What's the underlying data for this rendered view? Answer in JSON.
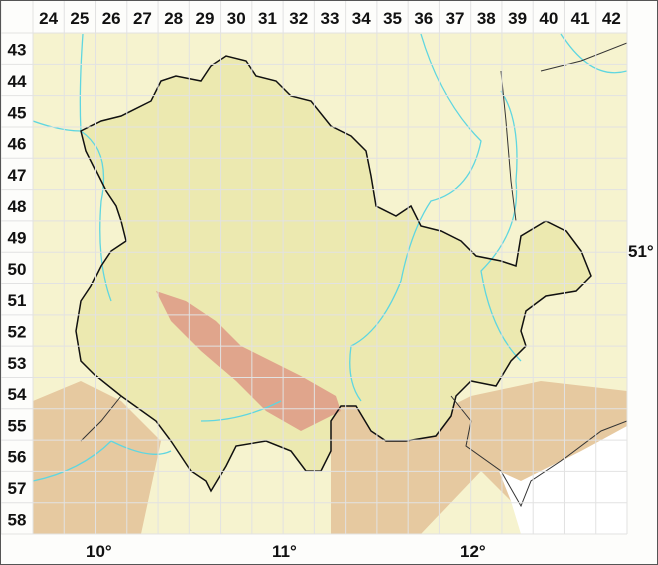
{
  "grid": {
    "columns": [
      "24",
      "25",
      "26",
      "27",
      "28",
      "29",
      "30",
      "31",
      "32",
      "33",
      "34",
      "35",
      "36",
      "37",
      "38",
      "39",
      "40",
      "41",
      "42"
    ],
    "rows": [
      "43",
      "44",
      "45",
      "46",
      "47",
      "48",
      "49",
      "50",
      "51",
      "52",
      "53",
      "54",
      "55",
      "56",
      "57",
      "58"
    ]
  },
  "longitude_labels": [
    "10°",
    "11°",
    "12°"
  ],
  "latitude_labels": [
    "51°"
  ],
  "colors": {
    "lowland": "#f6f3cf",
    "inside_region": "#ece9b0",
    "upland": "#e6c9a0",
    "highland": "#e0a58c",
    "river": "#5fd6e0",
    "border": "#111111",
    "gridline": "#e2e2e2"
  }
}
